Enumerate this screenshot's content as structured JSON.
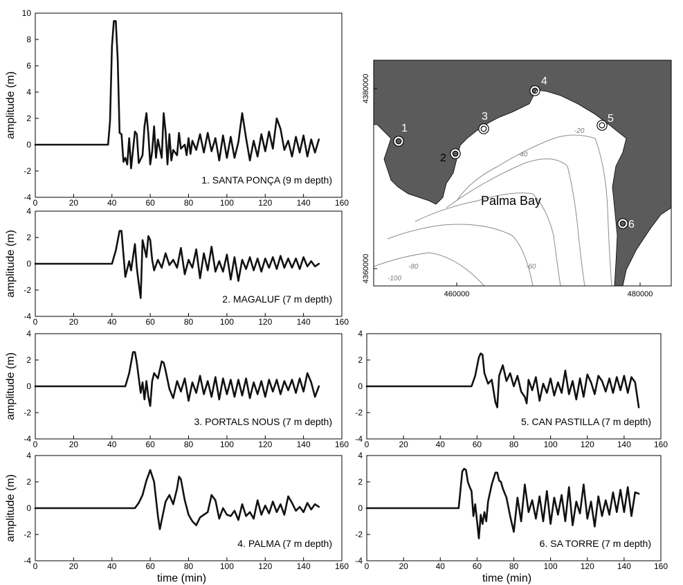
{
  "chart_data": [
    {
      "type": "line",
      "label": "1. SANTA PONÇA (9 m depth)",
      "ylabel": "amplitude (m)",
      "xlabel": "",
      "xlim": [
        0,
        160
      ],
      "ylim": [
        -4,
        10
      ],
      "xticks": [
        "0",
        "20",
        "40",
        "60",
        "80",
        "100",
        "120",
        "140",
        "160"
      ],
      "yticks": [
        "-4",
        "-2",
        "0",
        "2",
        "4",
        "6",
        "8",
        "10"
      ],
      "series": [
        {
          "x": [
            0,
            38,
            39,
            40,
            41,
            42,
            43,
            44,
            45,
            46,
            47,
            48,
            49,
            50,
            52,
            53,
            54,
            56,
            57,
            58,
            59,
            60,
            61,
            62,
            63,
            64,
            66,
            67,
            68,
            69,
            70,
            71,
            72,
            74,
            75,
            76,
            78,
            79,
            80,
            81,
            82,
            84,
            86,
            88,
            90,
            92,
            94,
            96,
            98,
            100,
            102,
            104,
            106,
            108,
            110,
            112,
            114,
            116,
            118,
            120,
            122,
            124,
            126,
            128,
            130,
            132,
            134,
            136,
            138,
            140,
            142,
            144,
            146,
            148
          ],
          "y": [
            0,
            0,
            1.8,
            7.5,
            9.4,
            9.4,
            6.5,
            0.9,
            0.8,
            -1.3,
            -1.0,
            -1.5,
            0.5,
            -1.8,
            1.0,
            0.8,
            -1.4,
            -0.8,
            1.4,
            2.4,
            0.8,
            -1.5,
            -0.5,
            1.4,
            -1.0,
            0.4,
            -1.0,
            2.4,
            1.0,
            -1.5,
            0.8,
            -1.2,
            -0.4,
            -0.8,
            0.9,
            -0.3,
            0.0,
            -0.8,
            0.5,
            -0.7,
            0.3,
            -0.4,
            0.8,
            -0.6,
            0.9,
            -0.5,
            0.5,
            -1.2,
            0.7,
            -1.0,
            0.6,
            -1.0,
            0.2,
            2.4,
            0.5,
            -1.2,
            0.3,
            -0.9,
            0.8,
            -0.5,
            1.0,
            -0.3,
            2.0,
            1.2,
            -0.4,
            0.3,
            -0.9,
            0.6,
            -0.6,
            0.7,
            -0.9,
            0.4,
            -0.6,
            0.4
          ]
        }
      ]
    },
    {
      "type": "line",
      "label": "2. MAGALUF (7 m depth)",
      "ylabel": "amplitude (m)",
      "xlabel": "",
      "xlim": [
        0,
        160
      ],
      "ylim": [
        -4,
        4
      ],
      "xticks": [
        "0",
        "20",
        "40",
        "60",
        "80",
        "100",
        "120",
        "140",
        "160"
      ],
      "yticks": [
        "-4",
        "-2",
        "0",
        "2",
        "4"
      ],
      "series": [
        {
          "x": [
            0,
            40,
            42,
            44,
            45,
            47,
            49,
            50,
            52,
            53,
            54,
            55,
            56,
            58,
            59,
            60,
            61,
            62,
            64,
            66,
            68,
            70,
            72,
            74,
            76,
            78,
            80,
            82,
            84,
            86,
            88,
            90,
            92,
            94,
            96,
            98,
            100,
            102,
            104,
            106,
            108,
            110,
            112,
            114,
            116,
            118,
            120,
            122,
            124,
            126,
            128,
            130,
            132,
            134,
            136,
            138,
            140,
            142,
            144,
            146,
            148
          ],
          "y": [
            0,
            0,
            1.0,
            2.5,
            2.5,
            -1.0,
            0.2,
            -0.5,
            1.5,
            -0.3,
            -1.5,
            -2.6,
            1.8,
            0.5,
            2.1,
            1.8,
            0.3,
            -0.5,
            0.3,
            -0.3,
            0.8,
            -0.1,
            0.3,
            -0.3,
            1.2,
            -0.8,
            0.3,
            -0.3,
            1.1,
            -1.1,
            0.8,
            -0.5,
            1.3,
            -0.6,
            0.2,
            -0.6,
            0.7,
            -1.2,
            0.5,
            -1.3,
            0.3,
            -0.4,
            0.5,
            -0.5,
            0.4,
            -0.6,
            0.4,
            -0.3,
            0.5,
            -0.4,
            0.6,
            -0.3,
            0.4,
            -0.3,
            0.4,
            -0.4,
            0.5,
            -0.2,
            0.2,
            -0.2,
            0.0
          ]
        }
      ]
    },
    {
      "type": "line",
      "label": "3. PORTALS NOUS (7 m depth)",
      "ylabel": "amplitude (m)",
      "xlabel": "",
      "xlim": [
        0,
        160
      ],
      "ylim": [
        -4,
        4
      ],
      "xticks": [
        "0",
        "20",
        "40",
        "60",
        "80",
        "100",
        "120",
        "140",
        "160"
      ],
      "yticks": [
        "-4",
        "-2",
        "0",
        "2",
        "4"
      ],
      "series": [
        {
          "x": [
            0,
            47,
            49,
            51,
            52,
            53,
            55,
            56,
            57,
            58,
            59,
            60,
            61,
            62,
            64,
            66,
            67,
            68,
            70,
            72,
            74,
            76,
            78,
            80,
            82,
            84,
            86,
            88,
            90,
            92,
            94,
            96,
            98,
            100,
            102,
            104,
            106,
            108,
            110,
            112,
            114,
            116,
            118,
            120,
            122,
            124,
            126,
            128,
            130,
            132,
            134,
            136,
            138,
            140,
            142,
            144,
            146,
            148
          ],
          "y": [
            0,
            0,
            1.0,
            2.6,
            2.6,
            1.8,
            -0.5,
            0.3,
            -1.0,
            0.4,
            -0.8,
            -1.5,
            0.4,
            1.0,
            0.6,
            1.9,
            1.8,
            1.2,
            -0.2,
            -0.9,
            0.4,
            -0.4,
            0.6,
            -1.1,
            0.3,
            -0.5,
            0.8,
            -0.6,
            0.4,
            -0.8,
            0.7,
            -1.0,
            0.6,
            -0.6,
            0.5,
            -0.8,
            0.5,
            -0.7,
            0.6,
            -0.9,
            0.3,
            -0.6,
            0.4,
            -0.8,
            0.5,
            -0.4,
            0.5,
            -0.6,
            0.4,
            -0.3,
            0.5,
            -0.5,
            0.6,
            -0.4,
            1.0,
            0.3,
            -0.8,
            0.0
          ]
        }
      ]
    },
    {
      "type": "line",
      "label": "4. PALMA (7 m depth)",
      "ylabel": "amplitude (m)",
      "xlabel": "time (min)",
      "xlim": [
        0,
        160
      ],
      "ylim": [
        -4,
        4
      ],
      "xticks": [
        "0",
        "20",
        "40",
        "60",
        "80",
        "100",
        "120",
        "140",
        "160"
      ],
      "yticks": [
        "-4",
        "-2",
        "0",
        "2",
        "4"
      ],
      "series": [
        {
          "x": [
            0,
            52,
            54,
            56,
            58,
            60,
            62,
            64,
            65,
            66,
            68,
            70,
            72,
            74,
            75,
            76,
            78,
            80,
            82,
            84,
            86,
            88,
            90,
            92,
            94,
            96,
            98,
            100,
            102,
            104,
            106,
            108,
            110,
            112,
            114,
            116,
            118,
            120,
            122,
            124,
            126,
            128,
            130,
            132,
            134,
            136,
            138,
            140,
            142,
            144,
            146,
            148
          ],
          "y": [
            0,
            0,
            0.4,
            1.0,
            2.1,
            2.9,
            2.0,
            -0.6,
            -1.6,
            -0.9,
            0.5,
            1.0,
            0.3,
            1.5,
            2.4,
            2.2,
            0.6,
            -0.5,
            -1.0,
            -1.3,
            -0.7,
            -0.5,
            -0.3,
            1.0,
            0.6,
            -0.8,
            0.0,
            -0.5,
            -0.6,
            -0.2,
            -0.9,
            0.3,
            -0.6,
            -0.3,
            -0.8,
            0.6,
            -0.5,
            0.2,
            -0.4,
            0.5,
            -0.3,
            0.3,
            -0.5,
            0.9,
            0.4,
            -0.2,
            0.1,
            -0.3,
            0.4,
            -0.1,
            0.3,
            0.1
          ]
        }
      ]
    },
    {
      "type": "line",
      "label": "5. CAN PASTILLA (7 m depth)",
      "ylabel": "",
      "xlabel": "",
      "xlim": [
        0,
        160
      ],
      "ylim": [
        -4,
        4
      ],
      "xticks": [
        "0",
        "20",
        "40",
        "60",
        "80",
        "100",
        "120",
        "140",
        "160"
      ],
      "yticks": [
        "-4",
        "-2",
        "0",
        "2",
        "4"
      ],
      "series": [
        {
          "x": [
            0,
            57,
            59,
            61,
            62,
            63,
            64,
            66,
            68,
            70,
            71,
            72,
            74,
            76,
            78,
            80,
            82,
            84,
            86,
            87,
            88,
            90,
            92,
            94,
            96,
            98,
            100,
            102,
            104,
            106,
            108,
            110,
            112,
            114,
            116,
            118,
            120,
            122,
            124,
            126,
            128,
            130,
            132,
            134,
            136,
            138,
            140,
            142,
            144,
            146,
            148
          ],
          "y": [
            0,
            0,
            0.8,
            2.2,
            2.5,
            2.4,
            1.0,
            0.2,
            0.5,
            -1.2,
            -1.6,
            0.8,
            1.6,
            0.4,
            1.0,
            0.0,
            0.8,
            -0.4,
            -0.8,
            -1.3,
            0.5,
            -0.3,
            0.7,
            -1.1,
            0.2,
            -0.5,
            0.6,
            -0.7,
            0.3,
            -0.5,
            1.2,
            -0.6,
            0.4,
            -1.0,
            0.6,
            -0.8,
            0.9,
            0.3,
            -0.6,
            0.8,
            0.4,
            -0.4,
            0.6,
            -0.5,
            0.7,
            -0.3,
            0.8,
            -0.5,
            0.7,
            0.3,
            -1.6
          ]
        }
      ]
    },
    {
      "type": "line",
      "label": "6. SA TORRE (7 m depth)",
      "ylabel": "",
      "xlabel": "time (min)",
      "xlim": [
        0,
        160
      ],
      "ylim": [
        -4,
        4
      ],
      "xticks": [
        "0",
        "20",
        "40",
        "60",
        "80",
        "100",
        "120",
        "140",
        "160"
      ],
      "yticks": [
        "-4",
        "-2",
        "0",
        "2",
        "4"
      ],
      "series": [
        {
          "x": [
            0,
            50,
            52,
            53,
            54,
            55,
            56,
            57,
            58,
            59,
            60,
            61,
            62,
            63,
            64,
            65,
            66,
            68,
            70,
            71,
            72,
            73,
            74,
            76,
            78,
            80,
            82,
            84,
            86,
            88,
            90,
            92,
            94,
            96,
            98,
            100,
            102,
            104,
            106,
            108,
            110,
            112,
            114,
            116,
            118,
            120,
            122,
            124,
            126,
            128,
            130,
            132,
            134,
            136,
            138,
            140,
            142,
            144,
            146,
            148
          ],
          "y": [
            0,
            0,
            2.8,
            3.0,
            2.9,
            2.0,
            1.6,
            1.3,
            -0.6,
            0.3,
            -1.0,
            -2.3,
            -0.5,
            -1.2,
            -0.3,
            -1.0,
            0.5,
            1.8,
            2.7,
            2.7,
            2.1,
            2.0,
            1.5,
            0.8,
            -0.6,
            -1.8,
            0.8,
            -1.0,
            1.8,
            -0.3,
            0.6,
            -0.8,
            0.9,
            -1.0,
            1.3,
            -1.2,
            0.8,
            -0.5,
            1.0,
            -1.0,
            1.6,
            -1.3,
            0.5,
            -0.4,
            1.8,
            -0.8,
            0.5,
            -1.4,
            0.9,
            -0.6,
            0.6,
            -0.5,
            1.2,
            -0.3,
            1.4,
            -0.3,
            1.6,
            -0.6,
            1.2,
            1.1
          ]
        }
      ]
    },
    {
      "type": "map",
      "label": "Palma Bay",
      "x_ticks": [
        "460000",
        "480000"
      ],
      "y_ticks": [
        "4380000",
        "4360000"
      ],
      "contour_labels": [
        "-20",
        "-40",
        "-60",
        "-80",
        "-100"
      ],
      "stations": [
        "1",
        "2",
        "3",
        "4",
        "5",
        "6"
      ],
      "colors": {
        "land": "#5b5b5b",
        "sea": "#ffffff",
        "contour": "#8a8a8a",
        "line": "#000000"
      }
    }
  ]
}
